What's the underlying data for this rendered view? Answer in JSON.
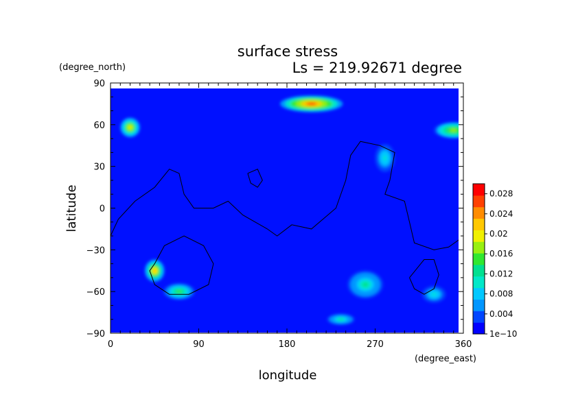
{
  "chart_data": {
    "type": "heatmap",
    "title": "surface stress",
    "subtitle": "Ls = 219.92671 degree",
    "xlabel": "longitude",
    "ylabel": "latitude",
    "x_unit": "(degree_east)",
    "y_unit": "(degree_north)",
    "xlim": [
      0,
      360
    ],
    "ylim": [
      -90,
      90
    ],
    "x_ticks": [
      "0",
      "90",
      "180",
      "270",
      "360"
    ],
    "x_tick_values": [
      0,
      90,
      180,
      270,
      360
    ],
    "y_ticks": [
      "90",
      "60",
      "30",
      "0",
      "−30",
      "−60",
      "−90"
    ],
    "y_tick_values": [
      90,
      60,
      30,
      0,
      -30,
      -60,
      -90
    ],
    "colorbar": {
      "labels": [
        "0.028",
        "0.024",
        "0.02",
        "0.016",
        "0.012",
        "0.008",
        "0.004",
        "1e−10"
      ],
      "values": [
        0.028,
        0.024,
        0.02,
        0.016,
        0.012,
        0.008,
        0.004,
        0
      ],
      "min": 0,
      "max": 0.03,
      "colors": [
        "#0000ff",
        "#0046ff",
        "#0096ff",
        "#00c8ff",
        "#00e8c8",
        "#00e090",
        "#30e830",
        "#98f010",
        "#f0f000",
        "#ffc800",
        "#ff8c00",
        "#ff4000",
        "#ff0000"
      ]
    },
    "features": [
      {
        "lon": 205,
        "lat": 75,
        "value": 0.026,
        "rx": 32,
        "ry": 6
      },
      {
        "lon": 20,
        "lat": 58,
        "value": 0.02,
        "rx": 10,
        "ry": 7
      },
      {
        "lon": 350,
        "lat": 56,
        "value": 0.018,
        "rx": 20,
        "ry": 6
      },
      {
        "lon": 45,
        "lat": -45,
        "value": 0.022,
        "rx": 10,
        "ry": 8
      },
      {
        "lon": 70,
        "lat": -60,
        "value": 0.014,
        "rx": 16,
        "ry": 6
      },
      {
        "lon": 260,
        "lat": -55,
        "value": 0.012,
        "rx": 18,
        "ry": 10
      },
      {
        "lon": 235,
        "lat": -80,
        "value": 0.012,
        "rx": 14,
        "ry": 4
      },
      {
        "lon": 280,
        "lat": 36,
        "value": 0.01,
        "rx": 10,
        "ry": 10
      },
      {
        "lon": 330,
        "lat": -62,
        "value": 0.01,
        "rx": 12,
        "ry": 6
      }
    ],
    "contours": [
      [
        [
          0,
          -20
        ],
        [
          8,
          -8
        ],
        [
          25,
          5
        ],
        [
          45,
          15
        ],
        [
          60,
          28
        ],
        [
          70,
          25
        ],
        [
          75,
          10
        ],
        [
          85,
          0
        ],
        [
          105,
          0
        ],
        [
          120,
          5
        ],
        [
          135,
          -5
        ],
        [
          160,
          -15
        ],
        [
          170,
          -20
        ],
        [
          185,
          -12
        ],
        [
          205,
          -15
        ],
        [
          230,
          0
        ],
        [
          240,
          20
        ],
        [
          245,
          38
        ],
        [
          255,
          48
        ],
        [
          275,
          45
        ],
        [
          290,
          40
        ],
        [
          285,
          20
        ],
        [
          280,
          10
        ],
        [
          300,
          5
        ],
        [
          305,
          -10
        ],
        [
          310,
          -25
        ],
        [
          330,
          -30
        ],
        [
          345,
          -28
        ],
        [
          355,
          -23
        ],
        [
          360,
          -20
        ]
      ],
      [
        [
          140,
          25
        ],
        [
          150,
          28
        ],
        [
          155,
          20
        ],
        [
          150,
          15
        ],
        [
          143,
          18
        ],
        [
          140,
          25
        ]
      ],
      [
        [
          45,
          -40
        ],
        [
          55,
          -27
        ],
        [
          75,
          -20
        ],
        [
          95,
          -27
        ],
        [
          105,
          -40
        ],
        [
          100,
          -55
        ],
        [
          80,
          -62
        ],
        [
          60,
          -62
        ],
        [
          45,
          -55
        ],
        [
          40,
          -45
        ],
        [
          45,
          -40
        ]
      ],
      [
        [
          305,
          -50
        ],
        [
          320,
          -37
        ],
        [
          330,
          -37
        ],
        [
          335,
          -48
        ],
        [
          330,
          -58
        ],
        [
          320,
          -62
        ],
        [
          310,
          -58
        ],
        [
          305,
          -50
        ]
      ]
    ]
  }
}
